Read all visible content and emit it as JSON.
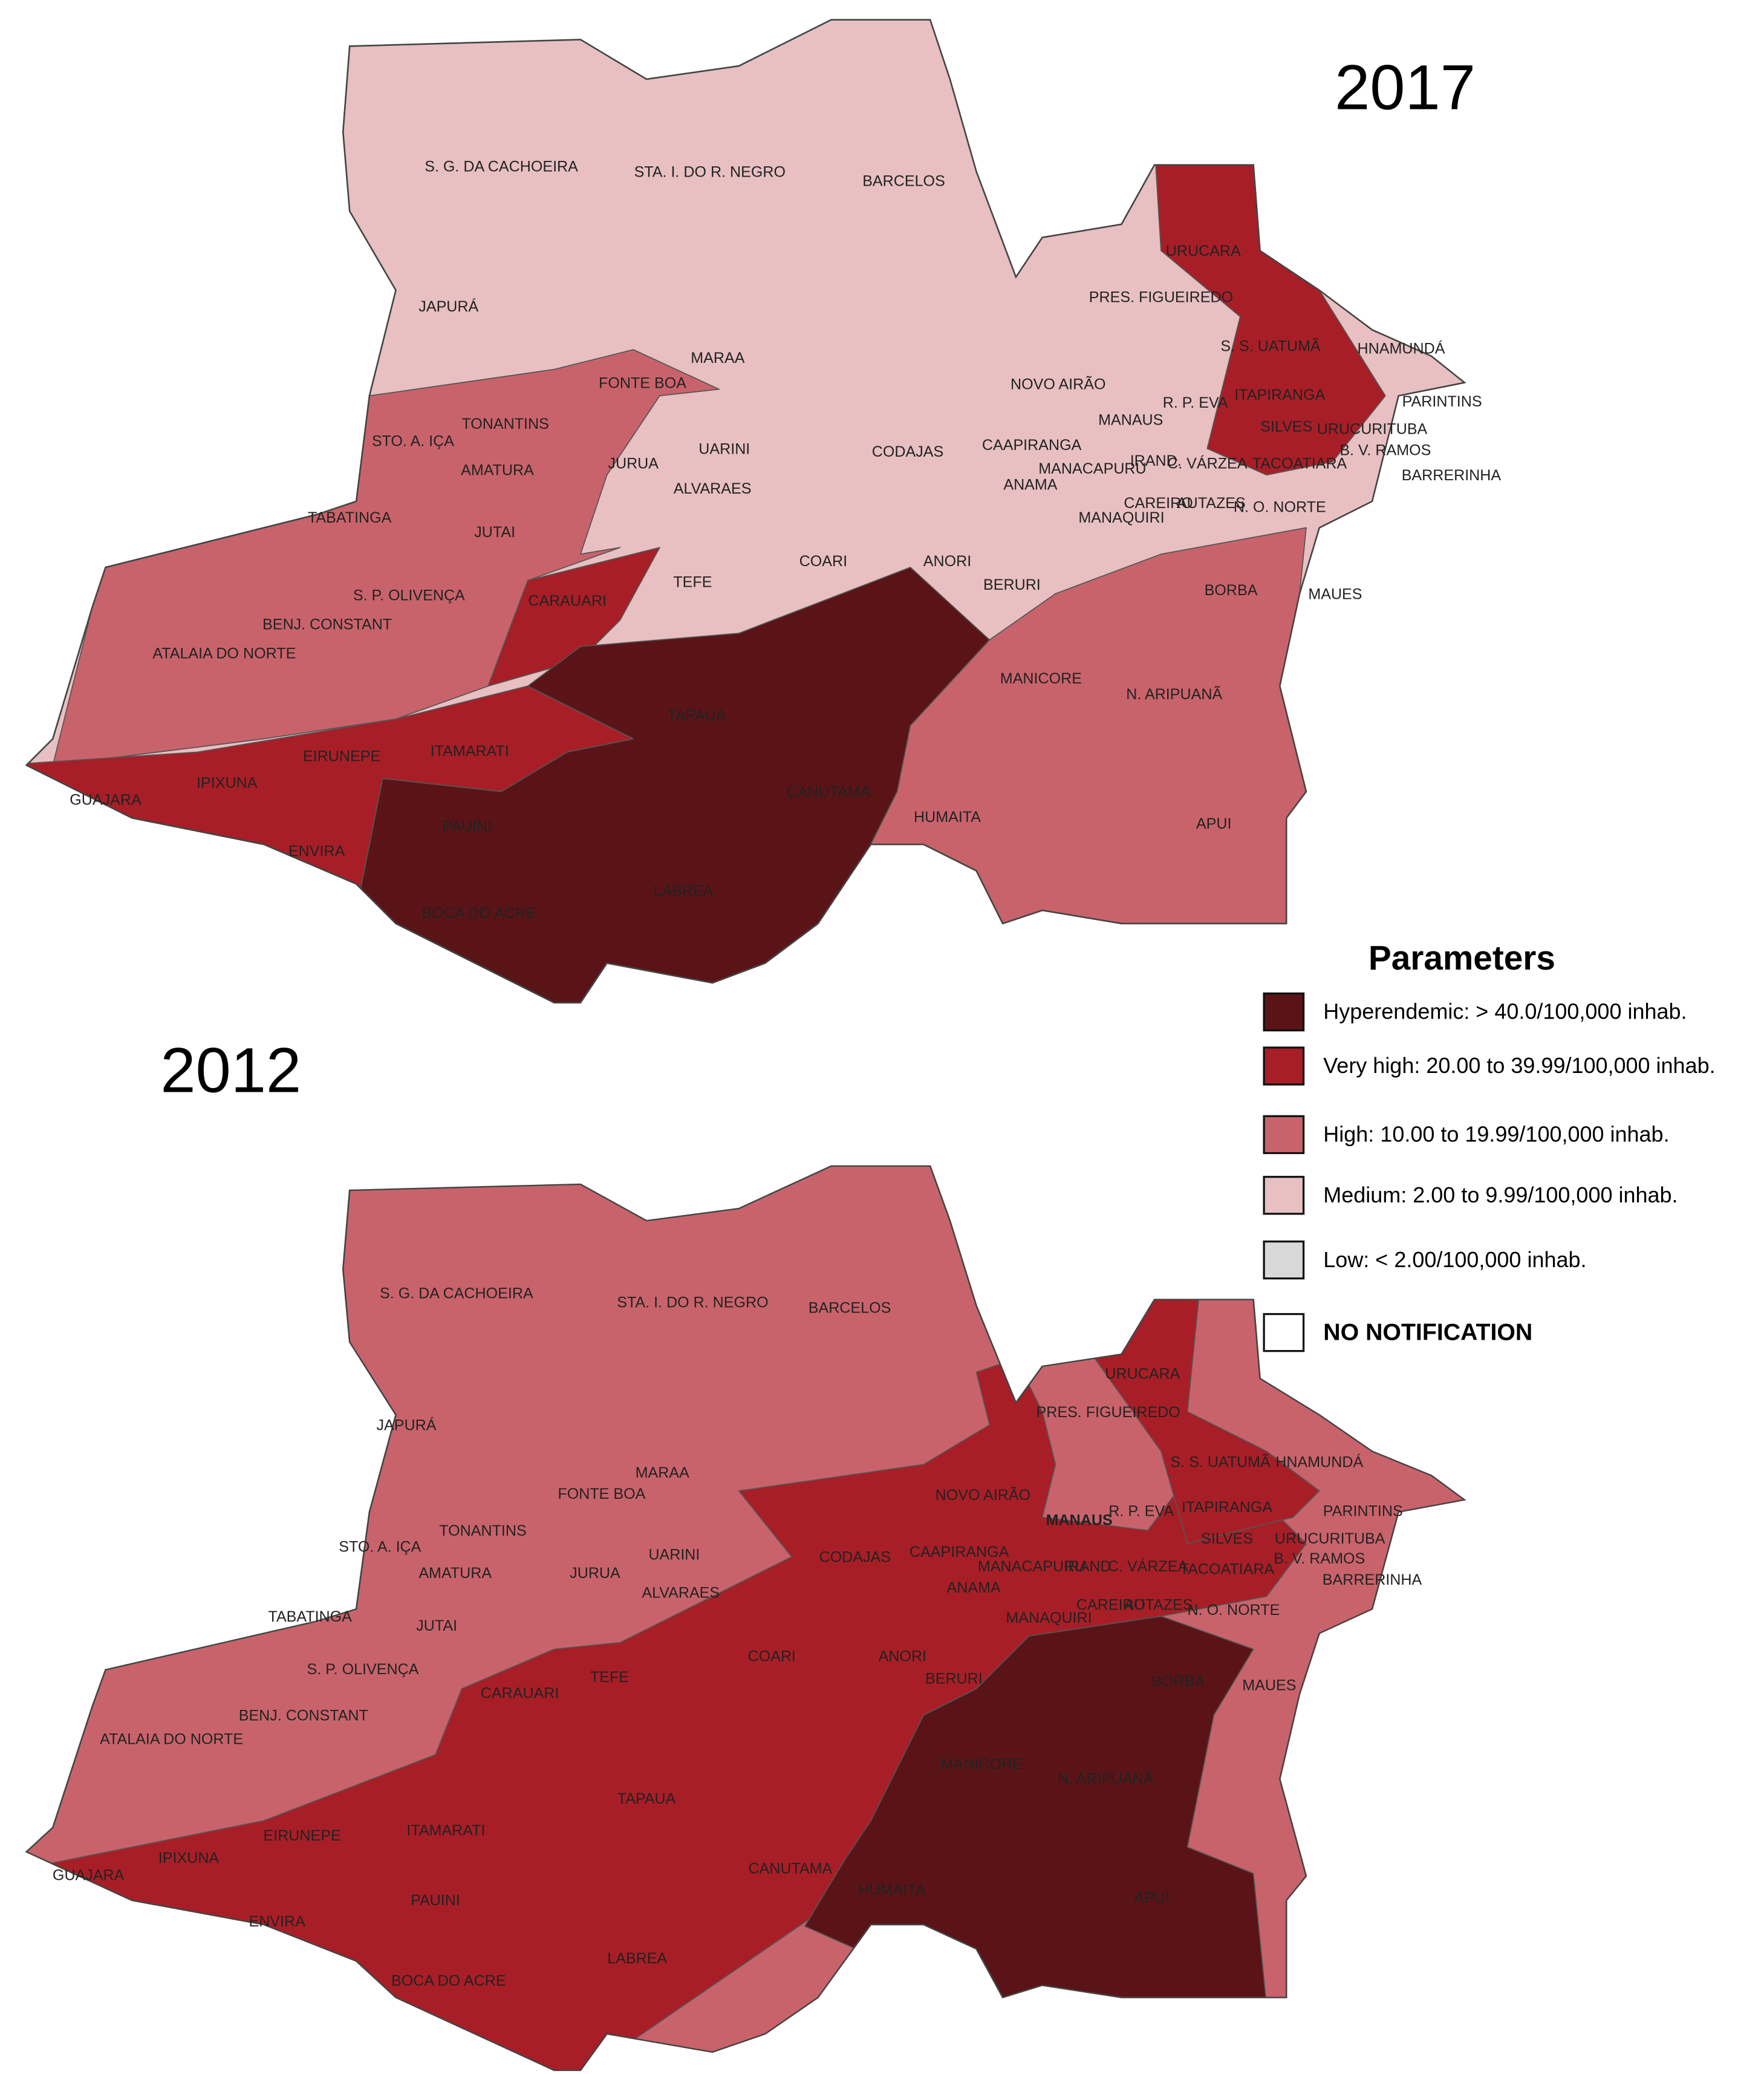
{
  "maps": [
    {
      "year": "2017",
      "labels": [
        "S. G. DA CACHOEIRA",
        "STA. I. DO R. NEGRO",
        "BARCELOS",
        "URUCARA",
        "JAPURÁ",
        "PRES. FIGUEIREDO",
        "S. S. UATUMÃ",
        "HNAMUNDÁ",
        "MARAA",
        "FONTE BOA",
        "NOVO AIRÃO",
        "ITAPIRANGA",
        "PARINTINS",
        "TONANTINS",
        "R. P. EVA",
        "MANAUS",
        "SILVES",
        "URUCURITUBA",
        "STO. A. IÇA",
        "CAAPIRANGA",
        "CODAJAS",
        "UARINI",
        "B. V. RAMOS",
        "JURUA",
        "AMATURA",
        "IRAND.",
        "C. VÁRZEA",
        "TACOATIARA",
        "MANACAPURU",
        "BARRERINHA",
        "ANAMA",
        "ALVARAES",
        "CAREIRO",
        "AUTAZES",
        "N. O. NORTE",
        "MANAQUIRI",
        "TABATINGA",
        "JUTAI",
        "TEFE",
        "COARI",
        "ANORI",
        "BERURI",
        "BORBA",
        "MAUES",
        "S. P. OLIVENÇA",
        "CARAUARI",
        "BENJ. CONSTANT",
        "ATALAIA DO NORTE",
        "MANICORE",
        "N. ARIPUANÃ",
        "TAPAUA",
        "EIRUNEPE",
        "ITAMARATI",
        "IPIXUNA",
        "CANUTAMA",
        "GUAJARA",
        "HUMAITA",
        "APUI",
        "PAUINI",
        "ENVIRA",
        "LABREA",
        "BOCA DO ACRE"
      ]
    },
    {
      "year": "2012",
      "labels": [
        "S. G. DA CACHOEIRA",
        "STA. I. DO R. NEGRO",
        "BARCELOS",
        "URUCARA",
        "PRES. FIGUEIREDO",
        "JAPURÁ",
        "S. S. UATUMÃ",
        "HNAMUNDÁ",
        "MARAA",
        "NOVO AIRÃO",
        "FONTE BOA",
        "MANAUS",
        "R. P. EVA",
        "ITAPIRANGA",
        "PARINTINS",
        "TONANTINS",
        "CAAPIRANGA",
        "CODAJAS",
        "UARINI",
        "SILVES",
        "URUCURITUBA",
        "B. V. RAMOS",
        "STO. A. IÇA",
        "MANACAPURU",
        "IRAND.",
        "C. VÁRZEA",
        "TACOATIARA",
        "JURUA",
        "AMATURA",
        "BARRERINHA",
        "ANAMA",
        "ALVARAES",
        "CAREIRO",
        "AUTAZES",
        "N. O. NORTE",
        "MANAQUIRI",
        "TABATINGA",
        "JUTAI",
        "COARI",
        "ANORI",
        "S. P. OLIVENÇA",
        "TEFE",
        "BERURI",
        "BORBA",
        "MAUES",
        "CARAUARI",
        "BENJ. CONSTANT",
        "ATALAIA DO NORTE",
        "MANICORE",
        "N. ARIPUANÃ",
        "TAPAUA",
        "ITAMARATI",
        "EIRUNEPE",
        "IPIXUNA",
        "CANUTAMA",
        "GUAJARA",
        "HUMAITA",
        "APUI",
        "PAUINI",
        "ENVIRA",
        "LABREA",
        "BOCA DO ACRE"
      ]
    }
  ],
  "legend": {
    "title": "Parameters",
    "items": [
      {
        "label": "Hyperendemic: > 40.0/100,000 inhab.",
        "color": "#5a1418"
      },
      {
        "label": "Very high: 20.00 to 39.99/100,000 inhab.",
        "color": "#a81e27"
      },
      {
        "label": "High: 10.00 to 19.99/100,000 inhab.",
        "color": "#c9636b"
      },
      {
        "label": "Medium: 2.00 to 9.99/100,000 inhab.",
        "color": "#e8c0c2"
      },
      {
        "label": "Low: < 2.00/100,000 inhab.",
        "color": "#d9d9d9"
      },
      {
        "label": "NO NOTIFICATION",
        "color": "#ffffff"
      }
    ]
  }
}
